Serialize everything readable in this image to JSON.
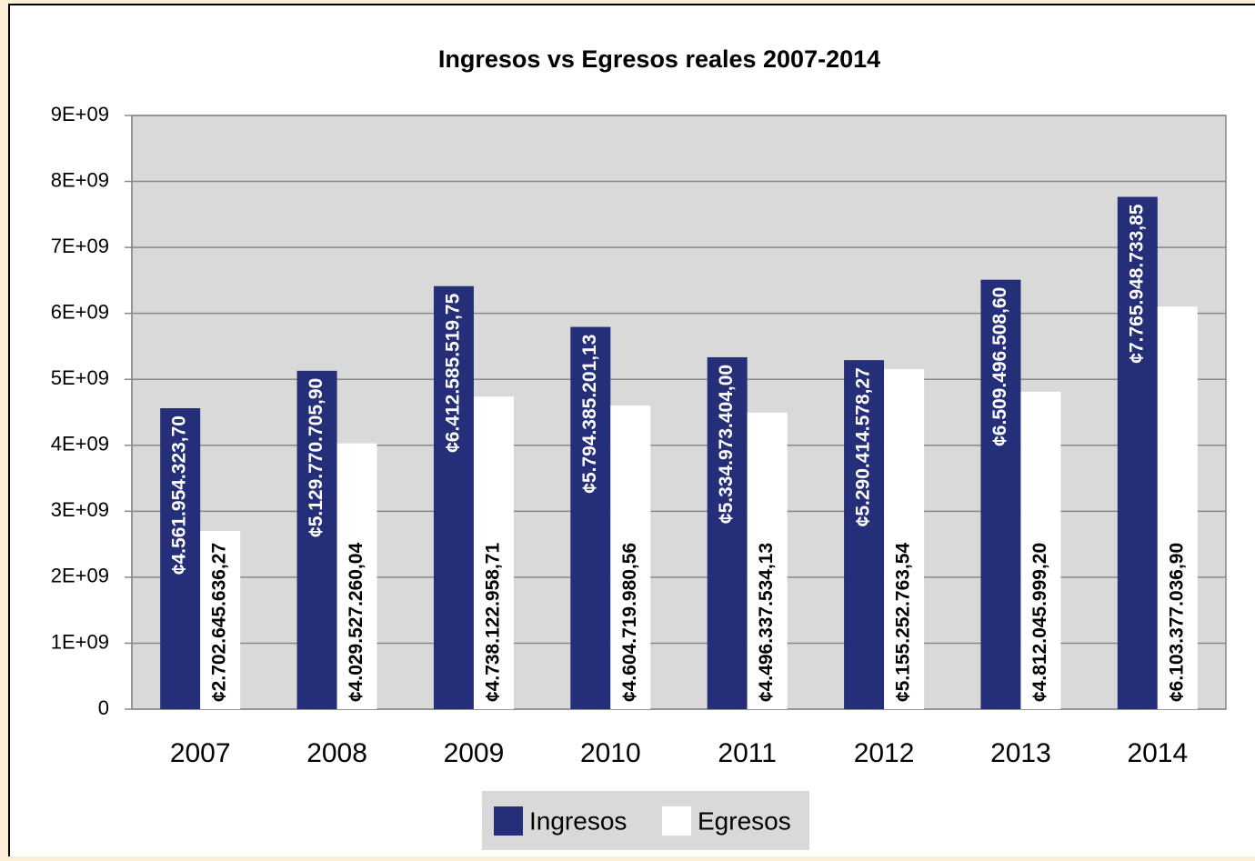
{
  "chart_data": {
    "type": "bar",
    "title": "Ingresos vs Egresos reales 2007-2014",
    "categories": [
      "2007",
      "2008",
      "2009",
      "2010",
      "2011",
      "2012",
      "2013",
      "2014"
    ],
    "series": [
      {
        "name": "Ingresos",
        "color": "#252e78",
        "values": [
          4561954323.7,
          5129770705.9,
          6412585519.75,
          5794385201.13,
          5334973404.0,
          5290414578.27,
          6509496508.6,
          7765948733.85
        ],
        "value_labels": [
          "¢4.561.954.323,70",
          "¢5.129.770.705,90",
          "¢6.412.585.519,75",
          "¢5.794.385.201,13",
          "¢5.334.973.404,00",
          "¢5.290.414.578,27",
          "¢6.509.496.508,60",
          "¢7.765.948.733,85"
        ]
      },
      {
        "name": "Egresos",
        "color": "#ffffff",
        "values": [
          2702645636.27,
          4029527260.04,
          4738122958.71,
          4604719980.56,
          4496337534.13,
          5155252763.54,
          4812045999.2,
          6103377036.9
        ],
        "value_labels": [
          "¢2.702.645.636,27",
          "¢4.029.527.260,04",
          "¢4.738.122.958,71",
          "¢4.604.719.980,56",
          "¢4.496.337.534,13",
          "¢5.155.252.763,54",
          "¢4.812.045.999,20",
          "¢6.103.377.036,90"
        ]
      }
    ],
    "ylim": [
      0,
      9000000000
    ],
    "yticks": [
      0,
      {
        "value": 1000000000,
        "label": "1E+09"
      },
      {
        "value": 2000000000,
        "label": "2E+09"
      },
      {
        "value": 3000000000,
        "label": "3E+09"
      },
      {
        "value": 4000000000,
        "label": "4E+09"
      },
      {
        "value": 5000000000,
        "label": "5E+09"
      },
      {
        "value": 6000000000,
        "label": "6E+09"
      },
      {
        "value": 7000000000,
        "label": "7E+09"
      },
      {
        "value": 8000000000,
        "label": "8E+09"
      },
      {
        "value": 9000000000,
        "label": "9E+09"
      }
    ],
    "grid": true,
    "legend": "bottom"
  }
}
